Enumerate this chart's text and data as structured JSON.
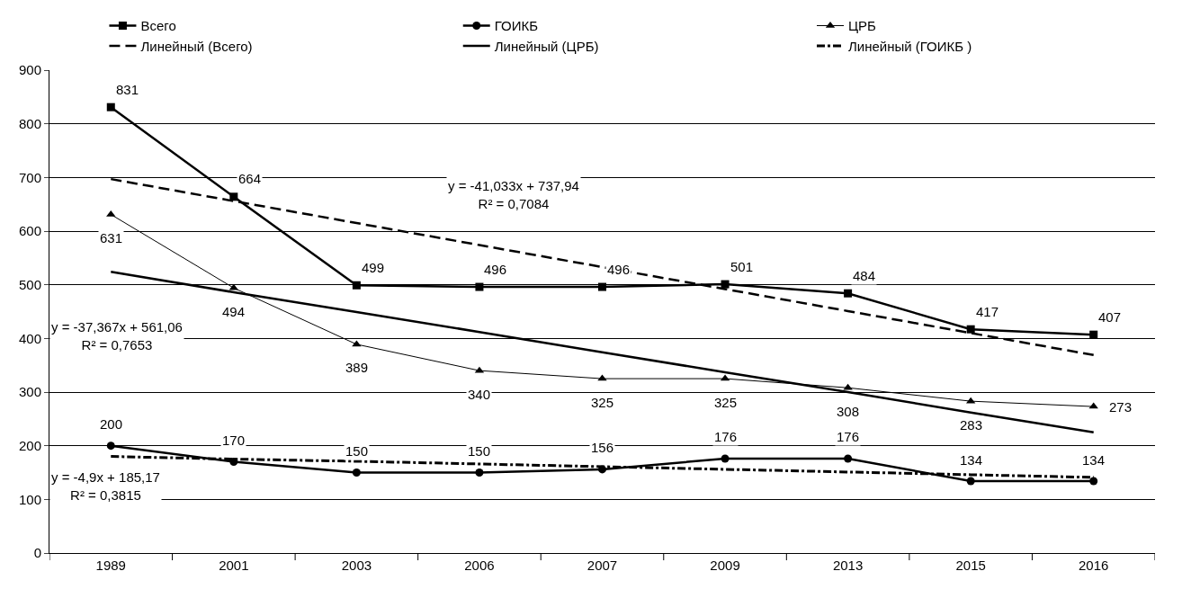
{
  "chart_data": {
    "type": "line",
    "categories": [
      "1989",
      "2001",
      "2003",
      "2006",
      "2007",
      "2009",
      "2013",
      "2015",
      "2016"
    ],
    "series": [
      {
        "name": "Всего",
        "color": "#000000",
        "marker": "square",
        "line_style": "solid",
        "data_labels": true,
        "values": [
          831,
          664,
          499,
          496,
          496,
          501,
          484,
          417,
          407
        ]
      },
      {
        "name": "ГОИКБ",
        "color": "#000000",
        "marker": "circle",
        "line_style": "solid",
        "data_labels": true,
        "values": [
          200,
          170,
          150,
          150,
          156,
          176,
          176,
          134,
          134
        ]
      },
      {
        "name": "ЦРБ",
        "color": "#000000",
        "marker": "triangle",
        "line_style": "solid",
        "data_labels": true,
        "values": [
          631,
          494,
          389,
          340,
          325,
          325,
          308,
          283,
          273
        ]
      },
      {
        "name": "Линейный (Всего)",
        "color": "#000000",
        "marker": "none",
        "line_style": "dashed",
        "values": [
          697,
          656,
          615,
          574,
          533,
          492,
          451,
          410,
          369
        ]
      },
      {
        "name": "Линейный (ЦРБ)",
        "color": "#000000",
        "marker": "none",
        "line_style": "solid",
        "values": [
          524,
          486,
          449,
          412,
          374,
          337,
          300,
          262,
          225
        ]
      },
      {
        "name": "Линейный (ГОИКБ )",
        "color": "#000000",
        "marker": "none",
        "line_style": "dashdot",
        "values": [
          180,
          175,
          171,
          166,
          161,
          156,
          151,
          146,
          141
        ]
      }
    ],
    "annotations": [
      "y = -41,033x + 737,94\nR² = 0,7084",
      "y = -37,367x + 561,06\nR² = 0,7653",
      "y = -4,9x + 185,17\nR² = 0,3815"
    ],
    "ylim": [
      0,
      900
    ],
    "yticks": [
      0,
      100,
      200,
      300,
      400,
      500,
      600,
      700,
      800,
      900
    ],
    "grid": "y",
    "legend": "top"
  }
}
